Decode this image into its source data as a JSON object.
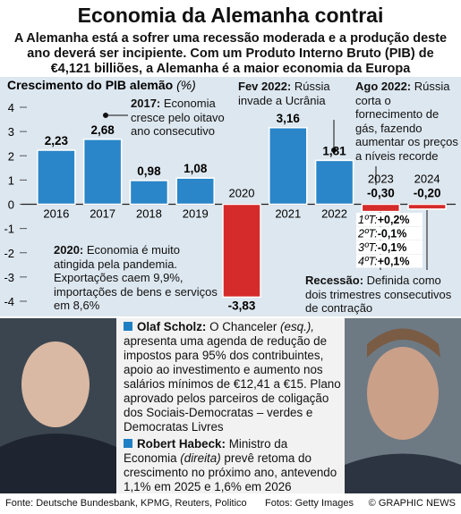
{
  "title": "Economia da Alemanha contrai",
  "subtitle": "A Alemanha está a sofrer uma recessão moderada e a produção deste ano deverá ser incipiente. Com um Produto Interno Bruto (PIB) de €4,121 billiões, a Alemanha é a maior economia da Europa",
  "chart_data": {
    "type": "bar",
    "title": "Crescimento do PIB alemão",
    "unit": "(%)",
    "categories": [
      "2016",
      "2017",
      "2018",
      "2019",
      "2020",
      "2021",
      "2022",
      "2023",
      "2024"
    ],
    "values": [
      2.23,
      2.68,
      0.98,
      1.08,
      -3.83,
      3.16,
      1.81,
      -0.3,
      -0.2
    ],
    "value_labels": [
      "2,23",
      "2,68",
      "0,98",
      "1,08",
      "-3,83",
      "3,16",
      "1,81",
      "-0,30",
      "-0,20"
    ],
    "color": "#2a86c8",
    "negative_color": "#d52b2b",
    "ylim": [
      -4,
      4
    ],
    "yticks": [
      4,
      3,
      2,
      1,
      0,
      -1,
      -2,
      -3,
      -4
    ],
    "annotations": [
      {
        "lead": "2017:",
        "text": "Economia cresce pelo oitavo ano consecutivo"
      },
      {
        "lead": "Fev 2022:",
        "text": "Rússia invade a Ucrânia"
      },
      {
        "lead": "Ago 2022:",
        "text": "Rússia corta o fornecimento de gás, fazendo aumentar os preços a níveis recorde"
      },
      {
        "lead": "2020:",
        "text": "Economia é muito atingida pela pandemia. Exportações caem 9,9%, importações de bens e serviços em 8,6%"
      },
      {
        "lead": "Recessão:",
        "text": "Definida como dois trimestres consecutivos de contração"
      }
    ],
    "quarters": [
      {
        "label": "1ºT:",
        "value": "+0,2%"
      },
      {
        "label": "2ºT:",
        "value": "-0,1%"
      },
      {
        "label": "3ºT:",
        "value": "-0,1%"
      },
      {
        "label": "4ºT:",
        "value": "+0,1%"
      }
    ]
  },
  "profiles": [
    {
      "name": "Olaf Scholz:",
      "pre": "O Chanceler",
      "em": "(esq.),",
      "post": "apresenta uma agenda de redução de impostos para 95% dos contribuintes, apoio ao investimento e aumento nos salários mínimos de €12,41 a €15. Plano aprovado pelos parceiros de coligação dos Sociais-Democratas – verdes e Democratas Livres"
    },
    {
      "name": "Robert Habeck:",
      "pre": "Ministro da Economia",
      "em": "(direita)",
      "post": "prevê retoma do crescimento no próximo ano, antevendo 1,1% em 2025 e 1,6% em 2026"
    }
  ],
  "footer": {
    "source": "Fonte: Deutsche Bundesbank, KPMG, Reuters, Politico",
    "photos": "Fotos: Getty Images",
    "credit": "© GRAPHIC NEWS"
  }
}
